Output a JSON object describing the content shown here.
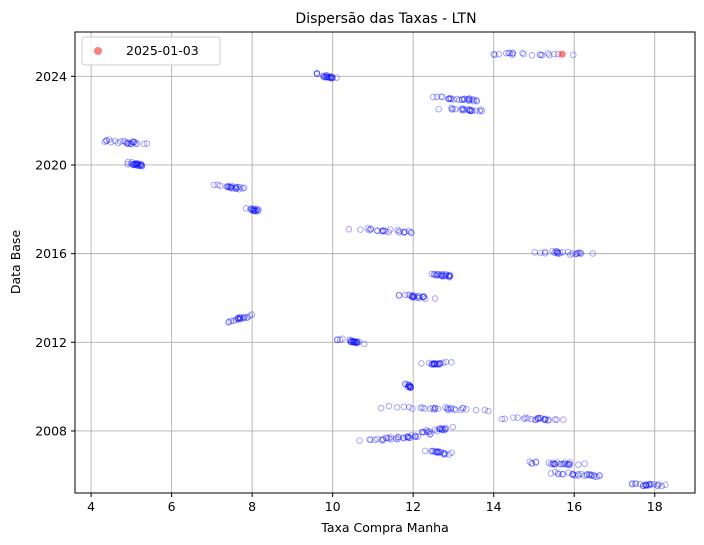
{
  "chart_data": {
    "type": "scatter",
    "title": "Dispersão das Taxas - LTN",
    "xlabel": "Taxa Compra Manha",
    "ylabel": "Data Base",
    "xlim": [
      3.6,
      19.0
    ],
    "ylim": [
      2005.2,
      2026.0
    ],
    "xticks": [
      4,
      6,
      8,
      10,
      12,
      14,
      16,
      18
    ],
    "yticks": [
      2008,
      2012,
      2016,
      2020,
      2024
    ],
    "grid": true,
    "legend": {
      "placement": "top-left",
      "entries": [
        "2025-01-03"
      ]
    },
    "colors": {
      "base": "#0000ff",
      "highlight": "#ff0000"
    },
    "highlight": {
      "name": "2025-01-03",
      "x": 15.7,
      "y": 2025.0
    },
    "clusters": [
      {
        "x": [
          14.0,
          16.2
        ],
        "y": [
          2025.0,
          2025.0
        ],
        "n": 20,
        "dens": 0.2
      },
      {
        "x": [
          9.6,
          10.1
        ],
        "y": [
          2024.1,
          2023.9
        ],
        "n": 22,
        "dens": 0.6
      },
      {
        "x": [
          12.4,
          13.7
        ],
        "y": [
          2023.1,
          2022.9
        ],
        "n": 26,
        "dens": 0.45
      },
      {
        "x": [
          12.6,
          13.8
        ],
        "y": [
          2022.55,
          2022.45
        ],
        "n": 22,
        "dens": 0.45
      },
      {
        "x": [
          4.3,
          5.4
        ],
        "y": [
          2021.1,
          2020.95
        ],
        "n": 24,
        "dens": 0.45
      },
      {
        "x": [
          4.9,
          5.4
        ],
        "y": [
          2020.1,
          2019.95
        ],
        "n": 24,
        "dens": 0.6
      },
      {
        "x": [
          7.0,
          8.0
        ],
        "y": [
          2019.1,
          2018.9
        ],
        "n": 22,
        "dens": 0.55
      },
      {
        "x": [
          7.8,
          8.3
        ],
        "y": [
          2018.05,
          2017.9
        ],
        "n": 16,
        "dens": 0.6
      },
      {
        "x": [
          10.3,
          12.2
        ],
        "y": [
          2017.15,
          2016.95
        ],
        "n": 24,
        "dens": 0.35
      },
      {
        "x": [
          14.9,
          16.6
        ],
        "y": [
          2016.1,
          2015.95
        ],
        "n": 24,
        "dens": 0.45
      },
      {
        "x": [
          12.3,
          13.1
        ],
        "y": [
          2015.1,
          2014.95
        ],
        "n": 22,
        "dens": 0.65
      },
      {
        "x": [
          11.6,
          12.6
        ],
        "y": [
          2014.15,
          2013.95
        ],
        "n": 22,
        "dens": 0.55
      },
      {
        "x": [
          7.4,
          8.0
        ],
        "y": [
          2012.95,
          2013.2
        ],
        "n": 20,
        "dens": 0.5
      },
      {
        "x": [
          10.1,
          10.8
        ],
        "y": [
          2012.15,
          2011.95
        ],
        "n": 24,
        "dens": 0.55
      },
      {
        "x": [
          12.2,
          13.0
        ],
        "y": [
          2011.0,
          2011.1
        ],
        "n": 20,
        "dens": 0.6
      },
      {
        "x": [
          11.8,
          12.0
        ],
        "y": [
          2010.1,
          2009.95
        ],
        "n": 14,
        "dens": 0.8
      },
      {
        "x": [
          10.9,
          13.9
        ],
        "y": [
          2009.1,
          2008.95
        ],
        "n": 30,
        "dens": 0.35
      },
      {
        "x": [
          14.2,
          15.8
        ],
        "y": [
          2008.6,
          2008.5
        ],
        "n": 24,
        "dens": 0.45
      },
      {
        "x": [
          12.2,
          13.0
        ],
        "y": [
          2007.95,
          2008.15
        ],
        "n": 20,
        "dens": 0.55
      },
      {
        "x": [
          10.3,
          12.5
        ],
        "y": [
          2007.45,
          2007.85
        ],
        "n": 32,
        "dens": 0.5
      },
      {
        "x": [
          12.2,
          13.0
        ],
        "y": [
          2007.1,
          2006.95
        ],
        "n": 18,
        "dens": 0.55
      },
      {
        "x": [
          14.8,
          16.3
        ],
        "y": [
          2006.6,
          2006.5
        ],
        "n": 26,
        "dens": 0.45
      },
      {
        "x": [
          15.2,
          16.8
        ],
        "y": [
          2006.15,
          2005.95
        ],
        "n": 26,
        "dens": 0.45
      },
      {
        "x": [
          17.4,
          18.3
        ],
        "y": [
          2005.6,
          2005.55
        ],
        "n": 22,
        "dens": 0.55
      }
    ]
  }
}
